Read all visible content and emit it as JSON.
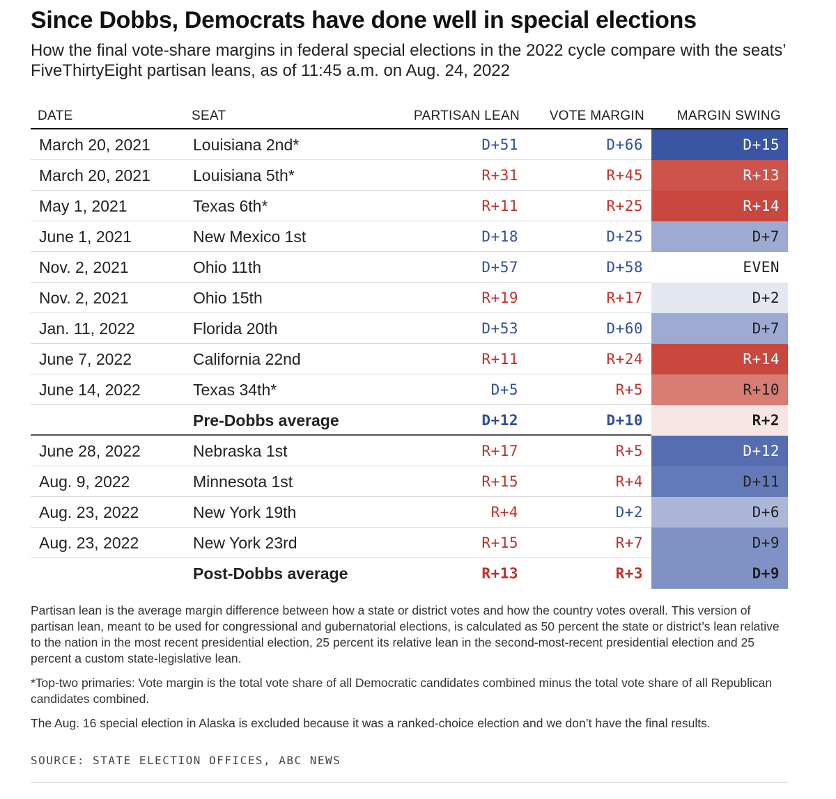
{
  "title": "Since Dobbs, Democrats have done well in special elections",
  "subtitle": "How the final vote-share margins in federal special elections in the 2022 cycle compare with the seats’ FiveThirtyEight partisan leans, as of 11:45 a.m. on Aug. 24, 2022",
  "colors": {
    "dem_text": "#2f4e9e",
    "rep_text": "#c0312b",
    "dem_strong": "#3a55a4",
    "rep_strong": "#c9473d"
  },
  "chart_data": {
    "type": "table",
    "columns": [
      "DATE",
      "SEAT",
      "PARTISAN LEAN",
      "VOTE MARGIN",
      "MARGIN SWING"
    ],
    "rows": [
      {
        "date": "March 20, 2021",
        "seat": "Louisiana 2nd*",
        "lean": "D+51",
        "margin": "D+66",
        "swing": "D+15",
        "swing_value": 15
      },
      {
        "date": "March 20, 2021",
        "seat": "Louisiana 5th*",
        "lean": "R+31",
        "margin": "R+45",
        "swing": "R+13",
        "swing_value": -13
      },
      {
        "date": "May 1, 2021",
        "seat": "Texas 6th*",
        "lean": "R+11",
        "margin": "R+25",
        "swing": "R+14",
        "swing_value": -14
      },
      {
        "date": "June 1, 2021",
        "seat": "New Mexico 1st",
        "lean": "D+18",
        "margin": "D+25",
        "swing": "D+7",
        "swing_value": 7
      },
      {
        "date": "Nov. 2, 2021",
        "seat": "Ohio 11th",
        "lean": "D+57",
        "margin": "D+58",
        "swing": "EVEN",
        "swing_value": 0
      },
      {
        "date": "Nov. 2, 2021",
        "seat": "Ohio 15th",
        "lean": "R+19",
        "margin": "R+17",
        "swing": "D+2",
        "swing_value": 2
      },
      {
        "date": "Jan. 11, 2022",
        "seat": "Florida 20th",
        "lean": "D+53",
        "margin": "D+60",
        "swing": "D+7",
        "swing_value": 7
      },
      {
        "date": "June 7, 2022",
        "seat": "California 22nd",
        "lean": "R+11",
        "margin": "R+24",
        "swing": "R+14",
        "swing_value": -14
      },
      {
        "date": "June 14, 2022",
        "seat": "Texas 34th*",
        "lean": "D+5",
        "margin": "R+5",
        "swing": "R+10",
        "swing_value": -10
      },
      {
        "date": "",
        "seat": "Pre-Dobbs average",
        "lean": "D+12",
        "margin": "D+10",
        "swing": "R+2",
        "swing_value": -2,
        "is_average": true
      },
      {
        "date": "June 28, 2022",
        "seat": "Nebraska 1st",
        "lean": "R+17",
        "margin": "R+5",
        "swing": "D+12",
        "swing_value": 12
      },
      {
        "date": "Aug. 9, 2022",
        "seat": "Minnesota 1st",
        "lean": "R+15",
        "margin": "R+4",
        "swing": "D+11",
        "swing_value": 11
      },
      {
        "date": "Aug. 23, 2022",
        "seat": "New York 19th",
        "lean": "R+4",
        "margin": "D+2",
        "swing": "D+6",
        "swing_value": 6
      },
      {
        "date": "Aug. 23, 2022",
        "seat": "New York 23rd",
        "lean": "R+15",
        "margin": "R+7",
        "swing": "D+9",
        "swing_value": 9
      },
      {
        "date": "",
        "seat": "Post-Dobbs average",
        "lean": "R+13",
        "margin": "R+3",
        "swing": "D+9",
        "swing_value": 9,
        "is_average": true
      }
    ]
  },
  "notes": [
    "Partisan lean is the average margin difference between how a state or district votes and how the country votes overall. This version of partisan lean, meant to be used for congressional and gubernatorial elections, is calculated as 50 percent the state or district’s lean relative to the nation in the most recent presidential election, 25 percent its relative lean in the second-most-recent presidential election and 25 percent a custom state-legislative lean.",
    "*Top-two primaries: Vote margin is the total vote share of all Democratic candidates combined minus the total vote share of all Republican candidates combined.",
    "The Aug. 16 special election in Alaska is excluded because it was a ranked-choice election and we don’t have the final results."
  ],
  "source": "SOURCE: STATE ELECTION OFFICES, ABC NEWS"
}
